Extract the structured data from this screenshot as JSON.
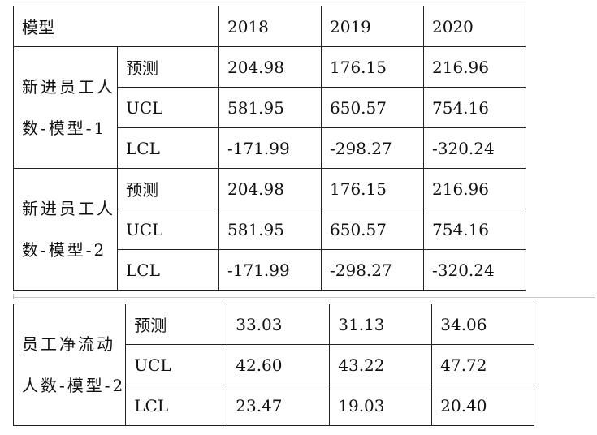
{
  "header": {
    "model_label": "模型",
    "years": [
      "2018",
      "2019",
      "2020"
    ]
  },
  "groups": [
    {
      "name_line1": "新进员工人",
      "name_line2": "数-模型-1",
      "rows": [
        {
          "label": "预测",
          "values": [
            "204.98",
            "176.15",
            "216.96"
          ]
        },
        {
          "label": "UCL",
          "values": [
            "581.95",
            "650.57",
            "754.16"
          ]
        },
        {
          "label": "LCL",
          "values": [
            "-171.99",
            "-298.27",
            "-320.24"
          ]
        }
      ]
    },
    {
      "name_line1": "新进员工人",
      "name_line2": "数-模型-2",
      "rows": [
        {
          "label": "预测",
          "values": [
            "204.98",
            "176.15",
            "216.96"
          ]
        },
        {
          "label": "UCL",
          "values": [
            "581.95",
            "650.57",
            "754.16"
          ]
        },
        {
          "label": "LCL",
          "values": [
            "-171.99",
            "-298.27",
            "-320.24"
          ]
        }
      ]
    },
    {
      "name_line1": "员工净流动",
      "name_line2": "人数-模型-2",
      "rows": [
        {
          "label": "预测",
          "values": [
            "33.03",
            "31.13",
            "34.06"
          ]
        },
        {
          "label": "UCL",
          "values": [
            "42.60",
            "43.22",
            "47.72"
          ]
        },
        {
          "label": "LCL",
          "values": [
            "23.47",
            "19.03",
            "20.40"
          ]
        }
      ]
    }
  ]
}
